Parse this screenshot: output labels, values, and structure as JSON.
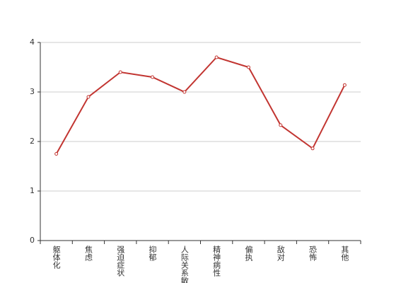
{
  "chart_data": {
    "type": "line",
    "categories": [
      "躯体化",
      "焦虑",
      "强迫症状",
      "抑郁",
      "人际关系敏感",
      "精神病性",
      "偏执",
      "敌对",
      "恐怖",
      "其他"
    ],
    "values": [
      1.75,
      2.9,
      3.4,
      3.3,
      3.0,
      3.7,
      3.5,
      2.33,
      1.86,
      3.14
    ],
    "color": "#c23531",
    "ylim": [
      0,
      4
    ],
    "yticks": [
      0,
      1,
      2,
      3,
      4
    ],
    "grid": true
  }
}
